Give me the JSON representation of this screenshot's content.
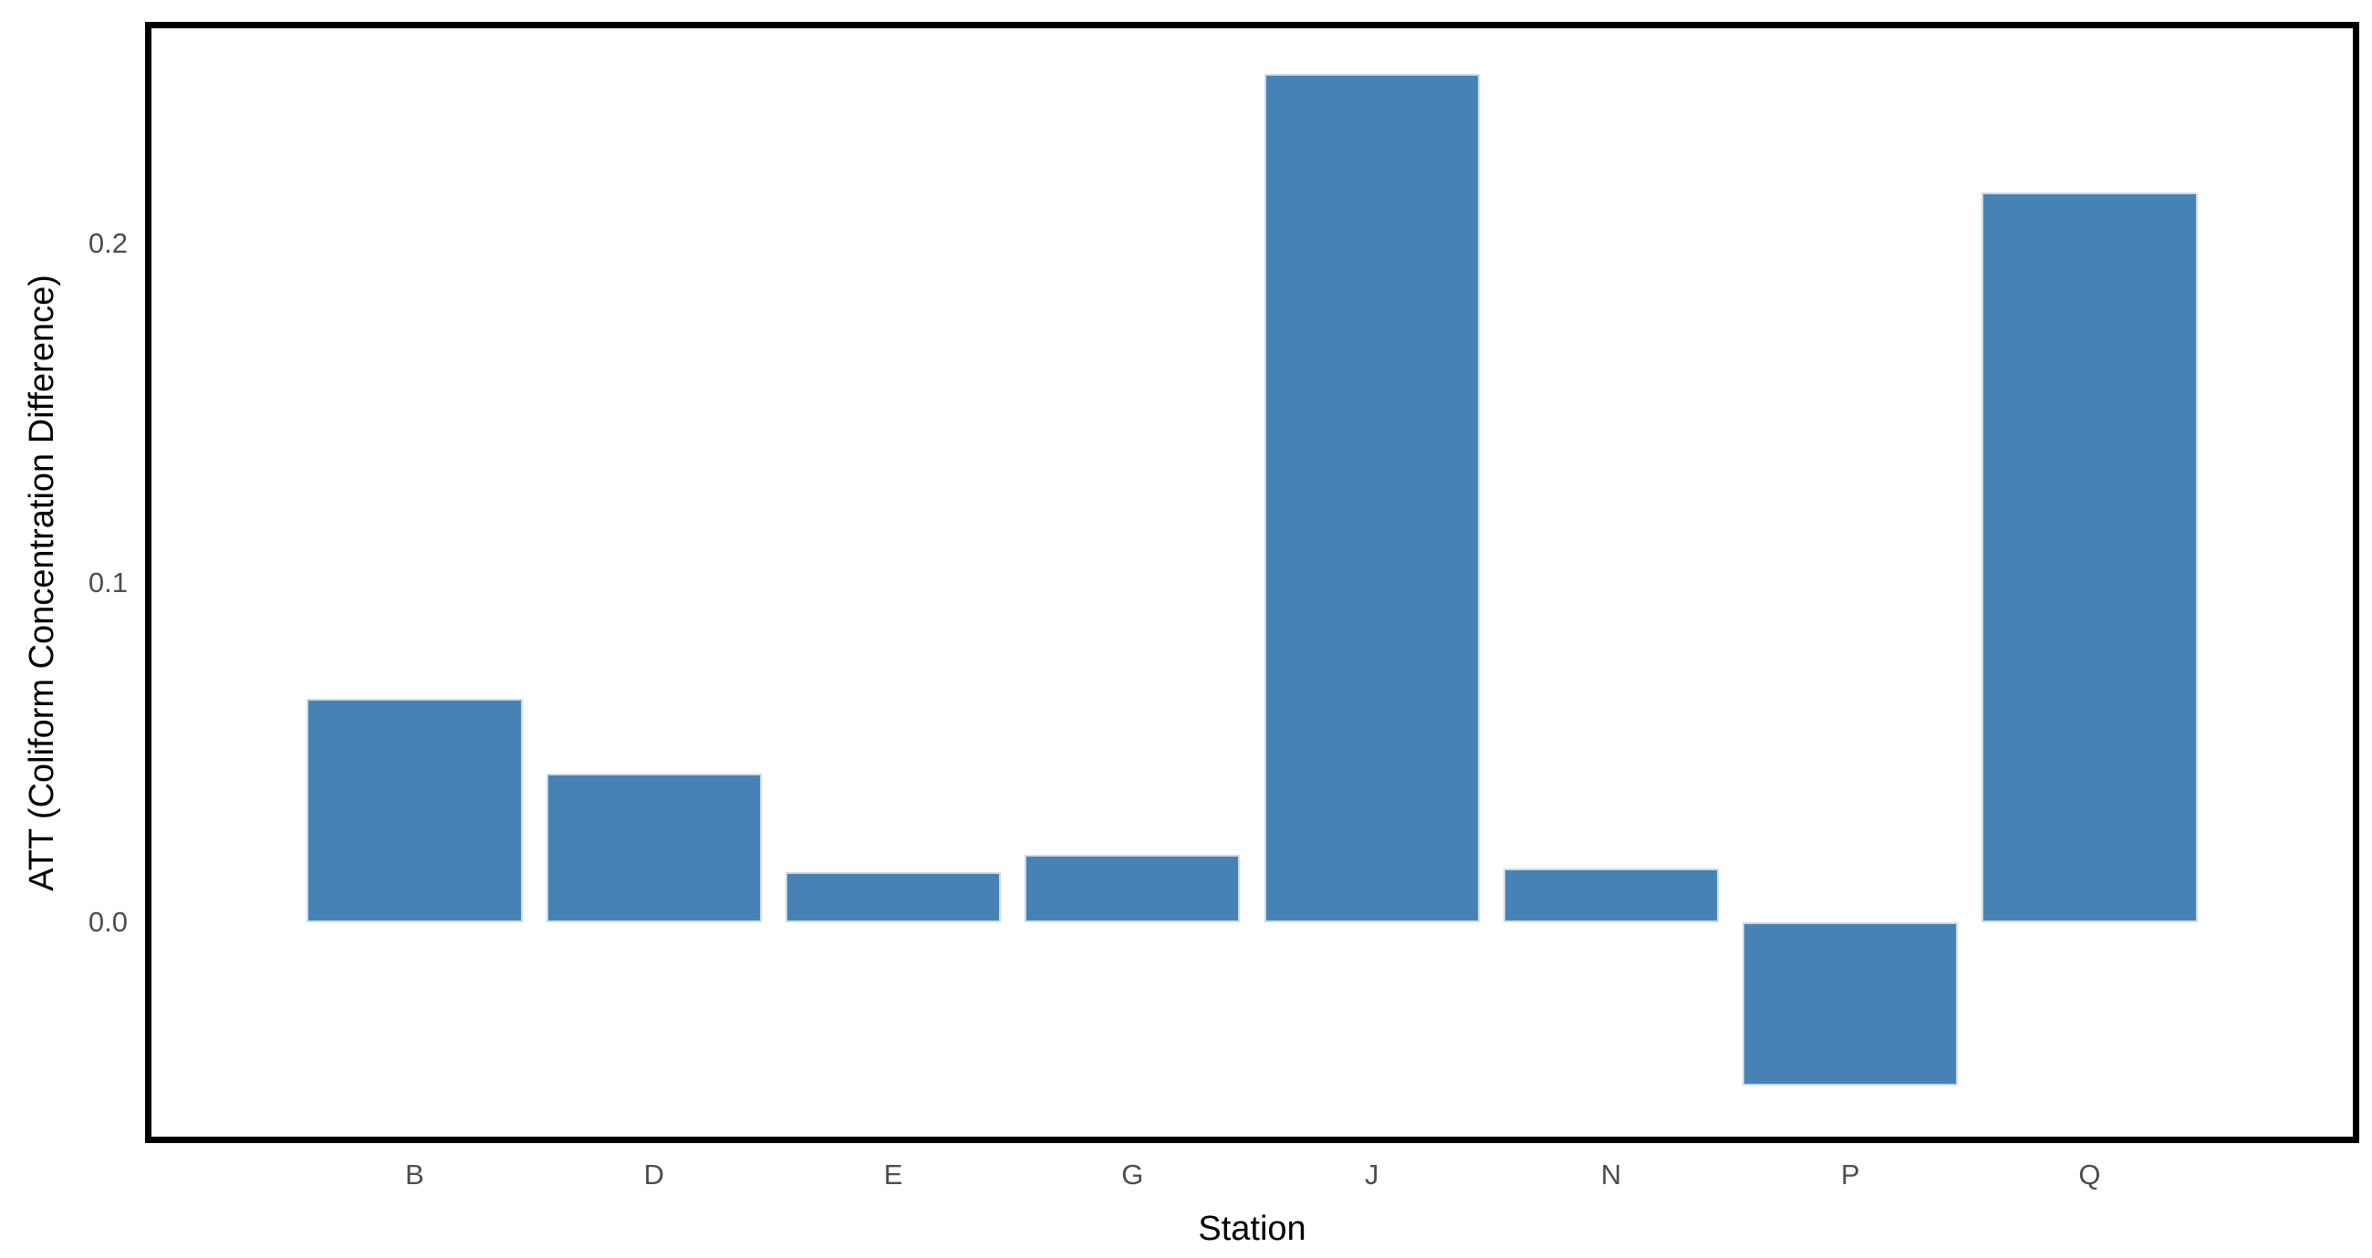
{
  "chart_data": {
    "type": "bar",
    "title": "",
    "xlabel": "Station",
    "ylabel": "ATT (Coliform Concentration Difference)",
    "categories": [
      "B",
      "D",
      "E",
      "G",
      "J",
      "N",
      "P",
      "Q"
    ],
    "values": [
      0.066,
      0.044,
      0.015,
      0.02,
      0.25,
      0.016,
      -0.048,
      0.215
    ],
    "ylim": [
      -0.063,
      0.2633
    ],
    "y_ticks": [
      0.0,
      0.1,
      0.2
    ],
    "y_tick_labels": [
      "0.0",
      "0.1",
      "0.2"
    ],
    "grid": "off",
    "legend": "none",
    "bar_fill_color": "#4682B4",
    "bar_edge_color": "#c9dbea",
    "panel_border_color": "#000000",
    "tick_label_color": "#4d4d4d",
    "axis_title_color": "#000000",
    "bar_width_fraction": 0.9,
    "category_expand": 0.6
  }
}
